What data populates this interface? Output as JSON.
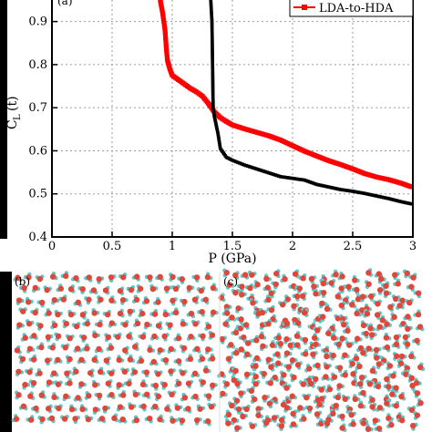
{
  "chart_data": {
    "type": "scatter",
    "panel_label": "(a)",
    "xlabel": "P (GPa)",
    "ylabel_main": "C",
    "ylabel_sub": "L",
    "ylabel_paren": "(t)",
    "xlim": [
      0,
      3
    ],
    "ylim": [
      0.4,
      0.95
    ],
    "xticks": [
      "0",
      "0.5",
      "1",
      "1.5",
      "2",
      "2.5",
      "3"
    ],
    "yticks": [
      "0.4",
      "0.5",
      "0.6",
      "0.7",
      "0.8",
      "0.9"
    ],
    "grid": true,
    "legend_position": "top-right",
    "legend": [
      "LDA-to-HDA"
    ],
    "series": [
      {
        "name": "LDA-to-HDA",
        "color": "#ff0000",
        "points": [
          [
            0.9,
            0.95
          ],
          [
            0.92,
            0.92
          ],
          [
            0.94,
            0.88
          ],
          [
            0.95,
            0.84
          ],
          [
            0.96,
            0.81
          ],
          [
            0.98,
            0.79
          ],
          [
            1.0,
            0.775
          ],
          [
            1.05,
            0.765
          ],
          [
            1.1,
            0.755
          ],
          [
            1.15,
            0.745
          ],
          [
            1.2,
            0.737
          ],
          [
            1.25,
            0.727
          ],
          [
            1.3,
            0.71
          ],
          [
            1.35,
            0.69
          ],
          [
            1.4,
            0.677
          ],
          [
            1.45,
            0.668
          ],
          [
            1.5,
            0.66
          ],
          [
            1.6,
            0.651
          ],
          [
            1.7,
            0.643
          ],
          [
            1.8,
            0.635
          ],
          [
            1.9,
            0.625
          ],
          [
            2.0,
            0.612
          ],
          [
            2.1,
            0.599
          ],
          [
            2.2,
            0.588
          ],
          [
            2.3,
            0.577
          ],
          [
            2.4,
            0.568
          ],
          [
            2.5,
            0.558
          ],
          [
            2.6,
            0.547
          ],
          [
            2.7,
            0.539
          ],
          [
            2.8,
            0.533
          ],
          [
            2.9,
            0.525
          ],
          [
            3.0,
            0.515
          ]
        ]
      },
      {
        "color": "#000000",
        "points": [
          [
            1.32,
            0.95
          ],
          [
            1.33,
            0.9
          ],
          [
            1.335,
            0.8
          ],
          [
            1.34,
            0.7
          ],
          [
            1.35,
            0.68
          ],
          [
            1.38,
            0.64
          ],
          [
            1.4,
            0.605
          ],
          [
            1.45,
            0.585
          ],
          [
            1.5,
            0.578
          ],
          [
            1.6,
            0.567
          ],
          [
            1.7,
            0.558
          ],
          [
            1.8,
            0.549
          ],
          [
            1.9,
            0.54
          ],
          [
            2.0,
            0.536
          ],
          [
            2.1,
            0.532
          ],
          [
            2.2,
            0.522
          ],
          [
            2.3,
            0.516
          ],
          [
            2.4,
            0.51
          ],
          [
            2.5,
            0.506
          ],
          [
            2.6,
            0.501
          ],
          [
            2.7,
            0.495
          ],
          [
            2.8,
            0.489
          ],
          [
            2.9,
            0.482
          ],
          [
            3.0,
            0.476
          ]
        ]
      }
    ]
  },
  "panels": {
    "b_label": "(b)",
    "c_label": "(c)",
    "atom_colors": {
      "oxygen": "#e0473c",
      "hydrogen": "#5fc8c8"
    }
  }
}
